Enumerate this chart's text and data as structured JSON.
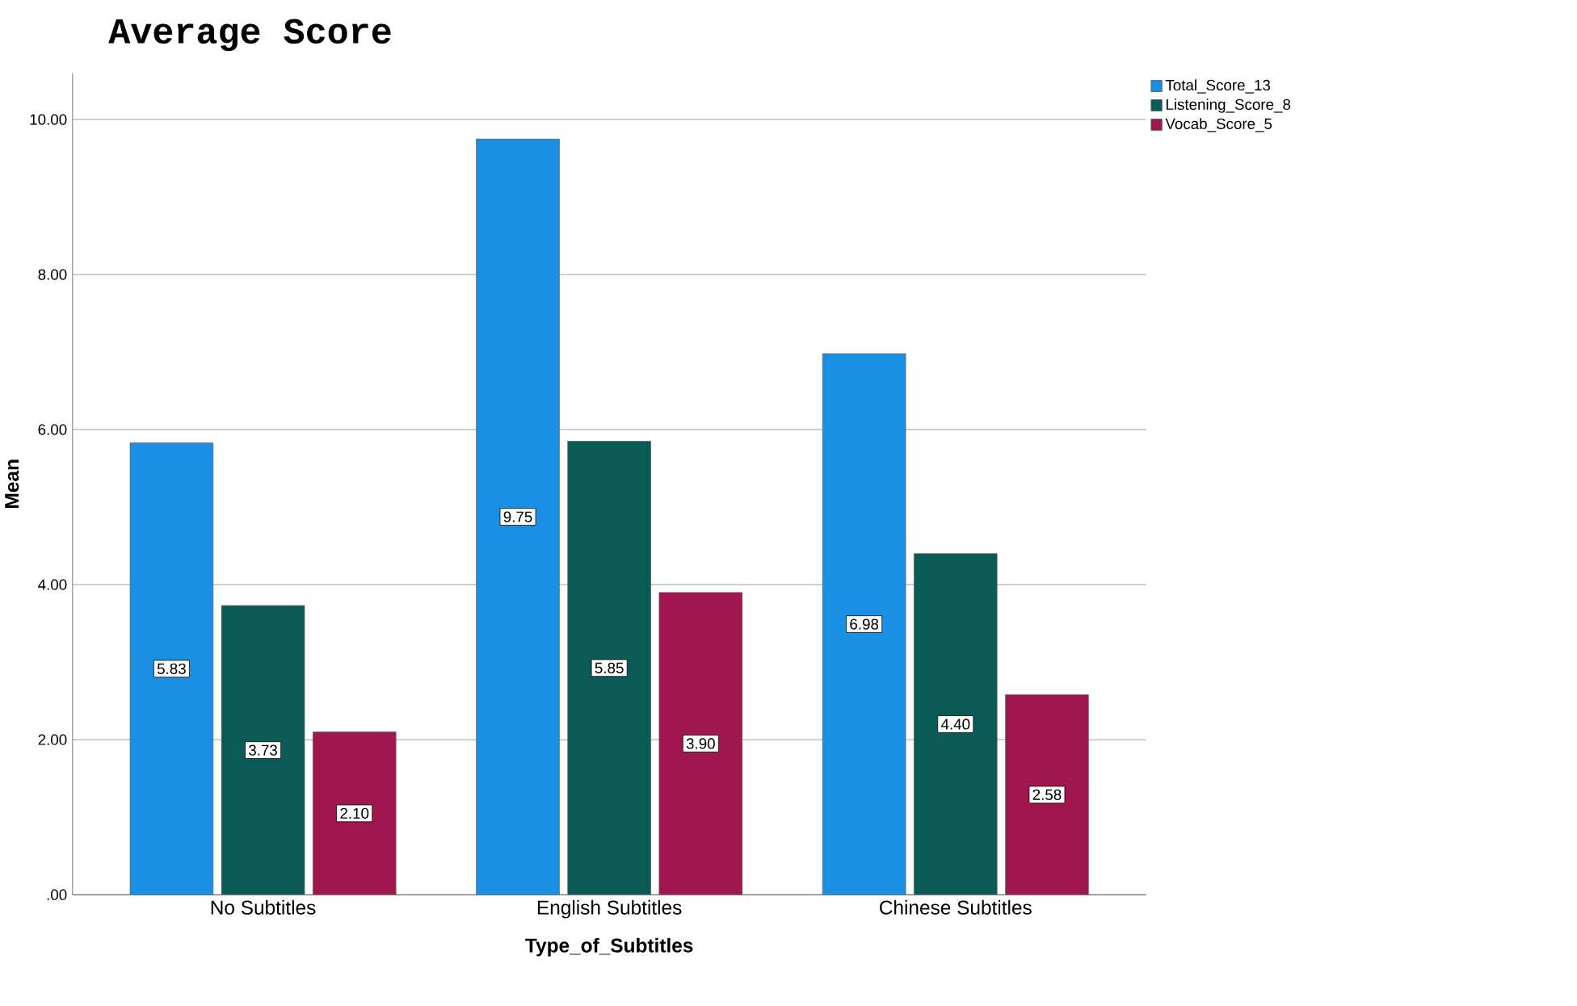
{
  "chart_data": {
    "type": "bar",
    "title": "Average Score",
    "xlabel": "Type_of_Subtitles",
    "ylabel": "Mean",
    "categories": [
      "No Subtitles",
      "English Subtitles",
      "Chinese Subtitles"
    ],
    "series": [
      {
        "name": "Total_Score_13",
        "color": "#1a8fe3",
        "values": [
          5.83,
          9.75,
          6.98
        ],
        "value_labels": [
          "5.83",
          "9.75",
          "6.98"
        ]
      },
      {
        "name": "Listening_Score_8",
        "color": "#0a5a55",
        "values": [
          3.73,
          5.85,
          4.4
        ],
        "value_labels": [
          "3.73",
          "5.85",
          "4.40"
        ]
      },
      {
        "name": "Vocab_Score_5",
        "color": "#a0174f",
        "values": [
          2.1,
          3.9,
          2.58
        ],
        "value_labels": [
          "2.10",
          "3.90",
          "2.58"
        ]
      }
    ],
    "ylim": [
      0,
      10.6
    ],
    "yticks": [
      {
        "value": 0,
        "label": ".00"
      },
      {
        "value": 2,
        "label": "2.00"
      },
      {
        "value": 4,
        "label": "4.00"
      },
      {
        "value": 6,
        "label": "6.00"
      },
      {
        "value": 8,
        "label": "8.00"
      },
      {
        "value": 10,
        "label": "10.00"
      }
    ],
    "grid": "y",
    "legend": "top right"
  }
}
